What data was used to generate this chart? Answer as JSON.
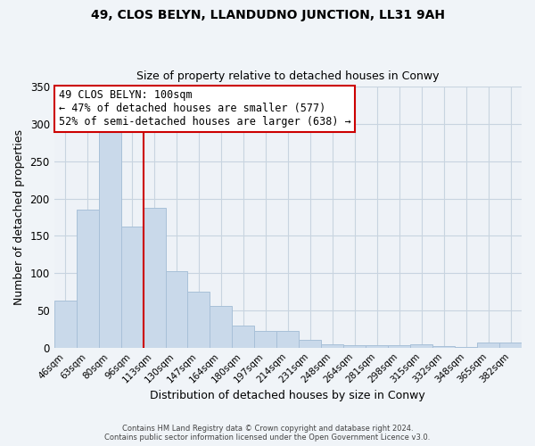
{
  "title": "49, CLOS BELYN, LLANDUDNO JUNCTION, LL31 9AH",
  "subtitle": "Size of property relative to detached houses in Conwy",
  "xlabel": "Distribution of detached houses by size in Conwy",
  "ylabel": "Number of detached properties",
  "bar_color": "#c9d9ea",
  "bar_edge_color": "#a8c0d8",
  "reference_line_color": "#cc0000",
  "categories": [
    "46sqm",
    "63sqm",
    "80sqm",
    "96sqm",
    "113sqm",
    "130sqm",
    "147sqm",
    "164sqm",
    "180sqm",
    "197sqm",
    "214sqm",
    "231sqm",
    "248sqm",
    "264sqm",
    "281sqm",
    "298sqm",
    "315sqm",
    "332sqm",
    "348sqm",
    "365sqm",
    "382sqm"
  ],
  "values": [
    63,
    185,
    294,
    163,
    188,
    103,
    75,
    56,
    30,
    23,
    23,
    10,
    5,
    3,
    3,
    3,
    5,
    2,
    1,
    7,
    7
  ],
  "ylim": [
    0,
    350
  ],
  "yticks": [
    0,
    50,
    100,
    150,
    200,
    250,
    300,
    350
  ],
  "reference_line_x": 3.5,
  "annotation_title": "49 CLOS BELYN: 100sqm",
  "annotation_line1": "← 47% of detached houses are smaller (577)",
  "annotation_line2": "52% of semi-detached houses are larger (638) →",
  "annotation_box_color": "#ffffff",
  "annotation_box_edge_color": "#cc0000",
  "footer_line1": "Contains HM Land Registry data © Crown copyright and database right 2024.",
  "footer_line2": "Contains public sector information licensed under the Open Government Licence v3.0.",
  "background_color": "#f0f4f8",
  "plot_background_color": "#eef2f7",
  "grid_color": "#c8d4e0"
}
